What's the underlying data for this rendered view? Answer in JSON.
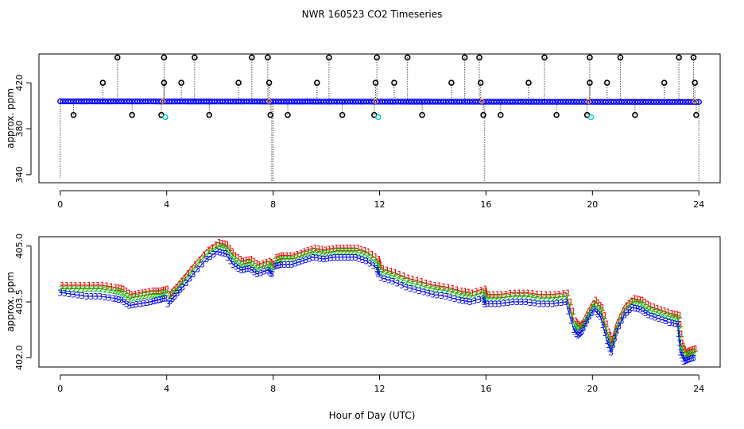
{
  "title": "NWR  160523  CO2 Timeseries",
  "xlabel": "Hour of Day (UTC)",
  "colors": {
    "axis": "#000000",
    "series1": "#ff0000",
    "series2": "#00c000",
    "series3": "#0000ff",
    "flag_points": "#000000",
    "cyan_points": "#00d0d0",
    "orange_points": "#ff9900"
  },
  "chart_data": [
    {
      "type": "scatter",
      "ylabel": "approx. ppm",
      "xlim": [
        -0.8,
        24.8
      ],
      "ylim": [
        333,
        445
      ],
      "x_ticks": [
        "0",
        "4",
        "8",
        "12",
        "16",
        "20",
        "24"
      ],
      "y_ticks": [
        {
          "value": 420,
          "label": "420"
        },
        {
          "value": 380,
          "label": "380"
        },
        {
          "value": 340,
          "label": "340"
        }
      ],
      "baseline_start": 403.8,
      "baseline_end": 403.3,
      "high_flags_x": [
        2.15,
        3.9,
        5.05,
        7.2,
        7.8,
        10.1,
        11.9,
        13.05,
        15.2,
        15.75,
        18.2,
        19.9,
        21.05,
        23.25,
        23.8
      ],
      "high_flag_value": 442,
      "mid_flags_x": [
        1.6,
        3.9,
        4.55,
        6.7,
        7.85,
        9.65,
        11.85,
        12.55,
        14.7,
        15.8,
        17.6,
        19.9,
        20.55,
        22.7,
        23.85
      ],
      "mid_flag_value": 420,
      "low_flags_x": [
        0.5,
        2.7,
        3.8,
        5.6,
        7.9,
        8.55,
        10.6,
        11.8,
        13.6,
        15.9,
        16.55,
        18.65,
        19.8,
        21.6,
        23.9
      ],
      "low_flag_value": 392,
      "cyan_x": [
        3.95,
        11.95,
        19.95
      ],
      "cyan_value": 390,
      "orange_x": [
        3.85,
        7.85,
        11.85,
        15.85,
        19.85,
        23.85
      ],
      "drop_lines": [
        {
          "x": 0.0,
          "y": 337
        },
        {
          "x": 7.95,
          "y": 333
        },
        {
          "x": 8.0,
          "y": 333
        },
        {
          "x": 15.95,
          "y": 333
        },
        {
          "x": 24.0,
          "y": 333
        }
      ]
    },
    {
      "type": "line",
      "ylabel": "approx. ppm",
      "xlim": [
        -0.8,
        24.8
      ],
      "ylim": [
        401.75,
        405.25
      ],
      "x_ticks": [
        "0",
        "4",
        "8",
        "12",
        "16",
        "20",
        "24"
      ],
      "y_ticks": [
        {
          "value": 405.0,
          "label": "405.0"
        },
        {
          "value": 403.5,
          "label": "403.5"
        },
        {
          "value": 402.0,
          "label": "402.0"
        }
      ],
      "series_markers": [
        "1",
        "2",
        "3"
      ],
      "x": [
        0.0,
        0.5,
        1.0,
        1.5,
        2.0,
        2.3,
        2.6,
        3.0,
        3.4,
        3.7,
        3.95,
        4.05,
        4.3,
        4.6,
        5.0,
        5.5,
        5.9,
        6.2,
        6.5,
        6.8,
        7.1,
        7.4,
        7.8,
        7.95,
        8.05,
        8.3,
        8.7,
        9.1,
        9.5,
        9.9,
        10.3,
        10.7,
        11.1,
        11.5,
        11.9,
        11.95,
        12.05,
        12.5,
        13.0,
        13.5,
        14.0,
        14.5,
        15.0,
        15.4,
        15.9,
        15.95,
        16.05,
        16.5,
        17.0,
        17.5,
        18.0,
        18.5,
        19.0,
        19.3,
        19.45,
        19.6,
        19.8,
        20.05,
        20.3,
        20.55,
        20.7,
        20.9,
        21.2,
        21.5,
        21.8,
        22.1,
        22.5,
        22.9,
        23.2,
        23.3,
        23.45,
        23.6,
        23.8
      ],
      "series": [
        {
          "values": [
            403.95,
            403.95,
            403.95,
            403.95,
            403.9,
            403.85,
            403.7,
            403.75,
            403.8,
            403.8,
            403.85,
            403.7,
            403.9,
            404.15,
            404.5,
            404.9,
            405.1,
            405.05,
            404.75,
            404.6,
            404.65,
            404.5,
            404.6,
            404.5,
            404.7,
            404.75,
            404.75,
            404.85,
            404.95,
            404.9,
            404.95,
            404.95,
            404.95,
            404.85,
            404.65,
            404.5,
            404.4,
            404.3,
            404.15,
            404.05,
            403.95,
            403.9,
            403.8,
            403.75,
            403.85,
            403.7,
            403.7,
            403.7,
            403.75,
            403.75,
            403.7,
            403.7,
            403.75,
            403.0,
            402.85,
            402.95,
            403.25,
            403.55,
            403.35,
            402.7,
            402.4,
            402.95,
            403.4,
            403.6,
            403.55,
            403.4,
            403.3,
            403.2,
            403.15,
            402.4,
            402.15,
            402.2,
            402.25
          ]
        },
        {
          "values": [
            403.85,
            403.85,
            403.85,
            403.85,
            403.8,
            403.75,
            403.6,
            403.65,
            403.7,
            403.7,
            403.75,
            403.6,
            403.8,
            404.05,
            404.4,
            404.8,
            405.0,
            404.95,
            404.65,
            404.5,
            404.55,
            404.4,
            404.5,
            404.4,
            404.6,
            404.65,
            404.65,
            404.75,
            404.85,
            404.8,
            404.85,
            404.85,
            404.85,
            404.75,
            404.55,
            404.4,
            404.3,
            404.2,
            404.05,
            403.95,
            403.85,
            403.8,
            403.7,
            403.65,
            403.75,
            403.6,
            403.6,
            403.6,
            403.65,
            403.65,
            403.6,
            403.6,
            403.65,
            402.9,
            402.75,
            402.85,
            403.15,
            403.45,
            403.25,
            402.6,
            402.3,
            402.85,
            403.3,
            403.5,
            403.45,
            403.3,
            403.2,
            403.1,
            403.05,
            402.3,
            402.05,
            402.1,
            402.15
          ]
        },
        {
          "values": [
            403.75,
            403.7,
            403.65,
            403.65,
            403.6,
            403.55,
            403.4,
            403.45,
            403.5,
            403.55,
            403.6,
            403.45,
            403.65,
            403.9,
            404.25,
            404.65,
            404.85,
            404.8,
            404.5,
            404.35,
            404.4,
            404.25,
            404.35,
            404.25,
            404.45,
            404.5,
            404.5,
            404.6,
            404.7,
            404.65,
            404.7,
            404.7,
            404.7,
            404.6,
            404.4,
            404.25,
            404.15,
            404.05,
            403.9,
            403.8,
            403.7,
            403.65,
            403.55,
            403.5,
            403.6,
            403.45,
            403.45,
            403.45,
            403.5,
            403.5,
            403.45,
            403.45,
            403.5,
            402.75,
            402.6,
            402.7,
            403.0,
            403.3,
            403.1,
            402.45,
            402.15,
            402.7,
            403.15,
            403.35,
            403.3,
            403.15,
            403.05,
            402.95,
            402.9,
            402.15,
            401.9,
            401.95,
            402.0
          ]
        }
      ]
    }
  ]
}
